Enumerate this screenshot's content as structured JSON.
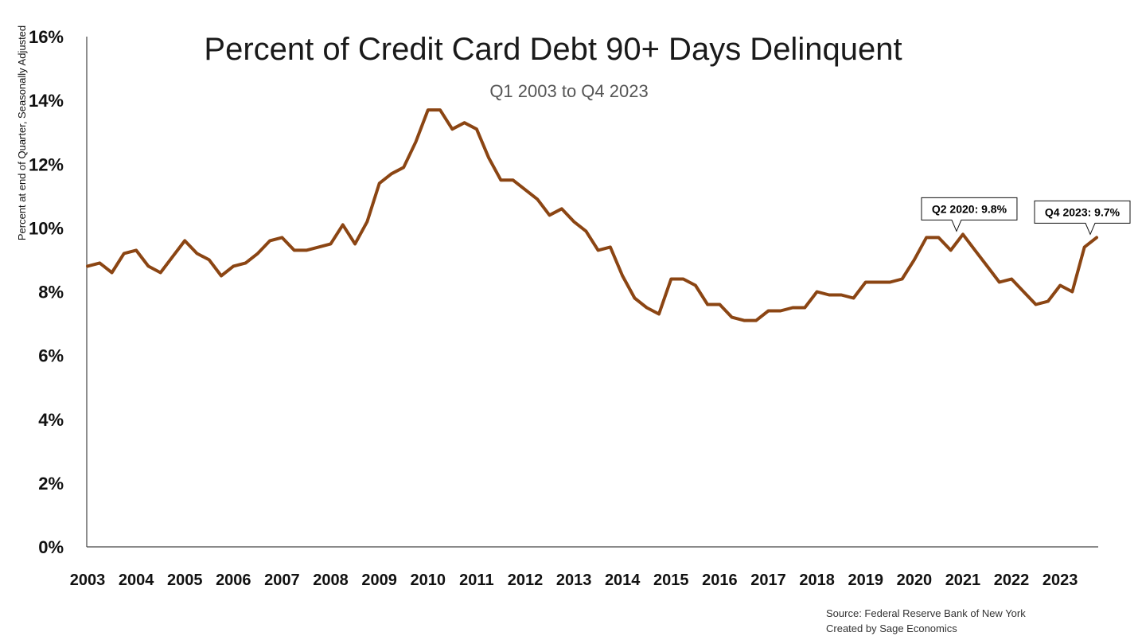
{
  "chart_data": {
    "type": "line",
    "title": "Percent of Credit Card Debt 90+ Days Delinquent",
    "subtitle": "Q1 2003 to Q4 2023",
    "ylabel": "Percent at end of Quarter, Seasonally Adjusted",
    "xlabel": "",
    "ylim": [
      0,
      16
    ],
    "yticks": [
      "0%",
      "2%",
      "4%",
      "6%",
      "8%",
      "10%",
      "12%",
      "14%",
      "16%"
    ],
    "xticks": [
      "2003",
      "2004",
      "2005",
      "2006",
      "2007",
      "2008",
      "2009",
      "2010",
      "2011",
      "2012",
      "2013",
      "2014",
      "2015",
      "2016",
      "2017",
      "2018",
      "2019",
      "2020",
      "2021",
      "2022",
      "2023"
    ],
    "grid": false,
    "line_color": "#8B4513",
    "series": [
      {
        "values": [
          8.8,
          8.9,
          8.6,
          9.2,
          9.3,
          8.8,
          8.6,
          9.1,
          9.6,
          9.2,
          9.0,
          8.5,
          8.8,
          8.9,
          9.2,
          9.6,
          9.7,
          9.3,
          9.3,
          9.4,
          9.5,
          10.1,
          9.5,
          10.2,
          11.4,
          11.7,
          11.9,
          12.7,
          13.7,
          13.7,
          13.1,
          13.3,
          13.1,
          12.2,
          11.5,
          11.5,
          11.2,
          10.9,
          10.4,
          10.6,
          10.2,
          9.9,
          9.3,
          9.4,
          8.5,
          7.8,
          7.5,
          7.3,
          8.4,
          8.4,
          8.2,
          7.6,
          7.6,
          7.2,
          7.1,
          7.1,
          7.4,
          7.4,
          7.5,
          7.5,
          8.0,
          7.9,
          7.9,
          7.8,
          8.3,
          8.3,
          8.3,
          8.4,
          9.0,
          9.7,
          9.7,
          9.3,
          9.8,
          9.3,
          8.8,
          8.3,
          8.4,
          8.0,
          7.6,
          7.7,
          8.2,
          8.0,
          9.4,
          9.7
        ]
      }
    ],
    "annotations": [
      {
        "text": "Q2 2020: 9.8%",
        "index": 72
      },
      {
        "text": "Q4 2023: 9.7%",
        "index": 83
      }
    ]
  },
  "source": {
    "line1": "Source: Federal Reserve Bank of New York",
    "line2": "Created by Sage Economics"
  }
}
